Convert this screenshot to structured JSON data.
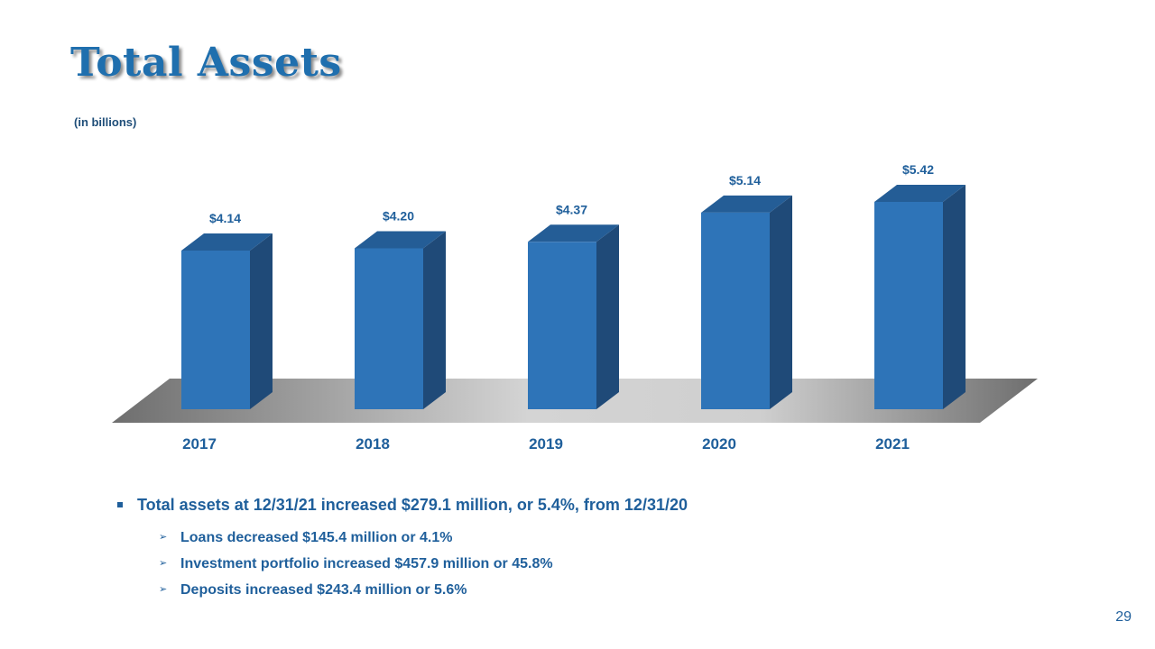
{
  "slide": {
    "title": "Total Assets",
    "unit_note": "(in billions)",
    "page_number": "29"
  },
  "chart_data": {
    "type": "bar",
    "categories": [
      "2017",
      "2018",
      "2019",
      "2020",
      "2021"
    ],
    "values": [
      4.14,
      4.2,
      4.37,
      5.14,
      5.42
    ],
    "data_labels": [
      "$4.14",
      "$4.20",
      "$4.37",
      "$5.14",
      "$5.42"
    ],
    "title": "",
    "xlabel": "",
    "ylabel": "",
    "ylim": [
      0,
      6
    ],
    "grid": false,
    "legend": "none",
    "style": "3d-columns",
    "colors": {
      "bar_front": "#2e74b8",
      "bar_side": "#1f4a78",
      "bar_top": "#245d96",
      "label": "#1f5f9b"
    }
  },
  "bullets": {
    "main": "Total assets at 12/31/21 increased $279.1 million, or 5.4%, from 12/31/20",
    "sub": [
      "Loans decreased $145.4 million or 4.1%",
      "Investment portfolio increased $457.9 million or 45.8%",
      "Deposits increased $243.4 million or 5.6%"
    ]
  }
}
